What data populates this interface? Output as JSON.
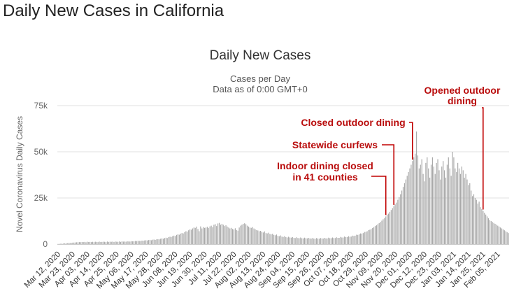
{
  "page": {
    "title": "Daily New Cases in California"
  },
  "chart_data": {
    "type": "bar",
    "title": "Daily New Cases",
    "subtitle_lines": [
      "Cases per Day",
      "Data as of 0:00 GMT+0"
    ],
    "ylabel": "Novel Coronavirus Daily Cases",
    "xlabel": "",
    "ylim": [
      0,
      75000
    ],
    "yticks": [
      0,
      25000,
      50000,
      75000
    ],
    "ytick_labels": [
      "0",
      "25k",
      "50k",
      "75k"
    ],
    "grid": true,
    "legend": "none",
    "bar_color": "#a9a9a9",
    "annotation_color": "#b90c0c",
    "x_start": "2020-03-12",
    "xtick_labels": [
      "Mar 12, 2020",
      "Mar 23, 2020",
      "Apr 03, 2020",
      "Apr 14, 2020",
      "Apr 25, 2020",
      "May 06, 2020",
      "May 17, 2020",
      "May 28, 2020",
      "Jun 08, 2020",
      "Jun 19, 2020",
      "Jun 30, 2020",
      "Jul 11, 2020",
      "Jul 22, 2020",
      "Aug 02, 2020",
      "Aug 13, 2020",
      "Aug 24, 2020",
      "Sep 04, 2020",
      "Sep 15, 2020",
      "Sep 26, 2020",
      "Oct 07, 2020",
      "Oct 18, 2020",
      "Oct 29, 2020",
      "Nov 09, 2020",
      "Nov 20, 2020",
      "Dec 01, 2020",
      "Dec 12, 2020",
      "Dec 23, 2020",
      "Jan 03, 2021",
      "Jan 14, 2021",
      "Jan 25, 2021",
      "Feb 05, 2021"
    ],
    "annotations": [
      {
        "lines": [
          "Indoor dining closed",
          "in 41 counties"
        ],
        "date": "2020-11-13"
      },
      {
        "lines": [
          "Statewide curfews"
        ],
        "date": "2020-11-19"
      },
      {
        "lines": [
          "Closed outdoor dining"
        ],
        "date": "2020-12-03"
      },
      {
        "lines": [
          "Opened outdoor",
          "dining"
        ],
        "date": "2021-01-25"
      }
    ],
    "series": [
      {
        "values": [
          100,
          150,
          200,
          250,
          300,
          400,
          450,
          500,
          600,
          650,
          700,
          800,
          850,
          900,
          1000,
          1000,
          1100,
          1050,
          1150,
          1100,
          1200,
          1000,
          1300,
          1150,
          1200,
          1100,
          1250,
          1050,
          1300,
          1200,
          1100,
          1350,
          1150,
          1200,
          1300,
          1250,
          1050,
          1400,
          1200,
          1300,
          1250,
          1350,
          1150,
          1400,
          1300,
          1250,
          1450,
          1200,
          1500,
          1350,
          1400,
          1300,
          1500,
          1450,
          1400,
          1600,
          1500,
          1550,
          1700,
          1650,
          1800,
          1750,
          1700,
          1900,
          1850,
          2000,
          2100,
          2000,
          2200,
          2300,
          2100,
          2400,
          2500,
          2300,
          2600,
          2700,
          2600,
          2900,
          3100,
          2900,
          3300,
          3500,
          3300,
          3800,
          4000,
          3900,
          4300,
          4600,
          4400,
          5000,
          5300,
          5100,
          5700,
          6000,
          5800,
          6500,
          7000,
          6800,
          7500,
          8000,
          7800,
          8500,
          9000,
          8800,
          9500,
          8200,
          7000,
          9600,
          8500,
          9200,
          8800,
          9000,
          9400,
          8700,
          9600,
          10000,
          9200,
          10500,
          10800,
          9800,
          11200,
          11500,
          10500,
          11000,
          10500,
          9800,
          10200,
          9500,
          9000,
          8500,
          8800,
          8200,
          7900,
          8600,
          7600,
          7300,
          9000,
          10000,
          10500,
          11000,
          11300,
          10800,
          10000,
          9500,
          9000,
          8800,
          9200,
          8500,
          8000,
          7600,
          7400,
          7000,
          7200,
          6600,
          6300,
          6900,
          6000,
          5800,
          6200,
          5500,
          5300,
          5600,
          5000,
          4800,
          5200,
          4500,
          4300,
          4700,
          4100,
          3900,
          4300,
          3800,
          3600,
          4000,
          3600,
          3500,
          3800,
          3400,
          3300,
          3700,
          3300,
          3200,
          3600,
          3200,
          3100,
          3500,
          3200,
          3100,
          3400,
          3100,
          3000,
          3300,
          3000,
          2900,
          3300,
          3000,
          2900,
          3300,
          3100,
          3000,
          3400,
          3100,
          3100,
          3500,
          3200,
          3200,
          3600,
          3300,
          3300,
          3700,
          3400,
          3400,
          3900,
          3600,
          3600,
          4100,
          3800,
          3800,
          4300,
          4000,
          4100,
          4600,
          4400,
          4600,
          5100,
          5000,
          5300,
          5800,
          5700,
          6000,
          6600,
          6600,
          7000,
          7600,
          7800,
          8200,
          8700,
          9200,
          9800,
          10200,
          10800,
          11400,
          12000,
          12700,
          13500,
          14000,
          15000,
          16000,
          16500,
          17500,
          18500,
          19500,
          20500,
          21500,
          22500,
          24000,
          25500,
          27000,
          29000,
          31000,
          33000,
          35000,
          37000,
          39000,
          41000,
          43000,
          45000,
          47000,
          49000,
          61000,
          48000,
          41000,
          43000,
          46000,
          38000,
          34000,
          44000,
          47000,
          41000,
          36000,
          43000,
          47000,
          42000,
          38000,
          44000,
          46000,
          40000,
          35000,
          42000,
          45000,
          40000,
          36000,
          43000,
          47000,
          41000,
          37000,
          50000,
          47000,
          41000,
          39000,
          44000,
          41000,
          38000,
          42000,
          40000,
          36000,
          38000,
          35000,
          32000,
          33000,
          29000,
          26000,
          27000,
          25000,
          24000,
          22000,
          23000,
          20000,
          19000,
          18000,
          17000,
          16000,
          15000,
          14000,
          13000,
          12500,
          12000,
          11500,
          11000,
          10500,
          10000,
          9500,
          9000,
          8500,
          8000,
          7500,
          7000,
          6500,
          6000
        ]
      }
    ]
  }
}
